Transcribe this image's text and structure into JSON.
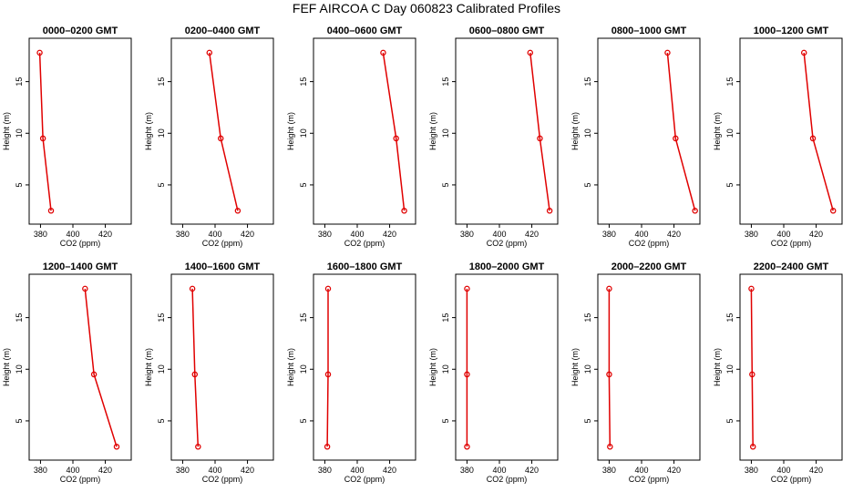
{
  "title": "FEF AIRCOA C  Day 060823  Calibrated Profiles",
  "axis": {
    "xlabel": "CO2 (ppm)",
    "ylabel": "Height (m)",
    "xlim": [
      373,
      436
    ],
    "ylim": [
      1.2,
      19.2
    ],
    "xticks": [
      380,
      400,
      420
    ],
    "yticks": [
      5,
      10,
      15
    ]
  },
  "style": {
    "line_color": "#e00000",
    "point_color": "#e00000"
  },
  "chart_data": [
    {
      "type": "line",
      "title": "0000–0200 GMT",
      "series": [
        {
          "x": [
            379.5,
            381.5,
            386.5
          ],
          "y": [
            17.8,
            9.5,
            2.5
          ]
        }
      ]
    },
    {
      "type": "line",
      "title": "0200–0400 GMT",
      "series": [
        {
          "x": [
            396.5,
            403.5,
            414
          ],
          "y": [
            17.8,
            9.5,
            2.5
          ]
        }
      ]
    },
    {
      "type": "line",
      "title": "0400–0600 GMT",
      "series": [
        {
          "x": [
            416,
            424,
            429
          ],
          "y": [
            17.8,
            9.5,
            2.5
          ]
        }
      ]
    },
    {
      "type": "line",
      "title": "0600–0800 GMT",
      "series": [
        {
          "x": [
            419,
            425,
            431
          ],
          "y": [
            17.8,
            9.5,
            2.5
          ]
        }
      ]
    },
    {
      "type": "line",
      "title": "0800–1000 GMT",
      "series": [
        {
          "x": [
            416,
            421,
            433
          ],
          "y": [
            17.8,
            9.5,
            2.5
          ]
        }
      ]
    },
    {
      "type": "line",
      "title": "1000–1200 GMT",
      "series": [
        {
          "x": [
            412.5,
            418,
            430.5
          ],
          "y": [
            17.8,
            9.5,
            2.5
          ]
        }
      ]
    },
    {
      "type": "line",
      "title": "1200–1400 GMT",
      "series": [
        {
          "x": [
            407.5,
            413,
            427
          ],
          "y": [
            17.8,
            9.5,
            2.5
          ]
        }
      ]
    },
    {
      "type": "line",
      "title": "1400–1600 GMT",
      "series": [
        {
          "x": [
            386,
            387.5,
            389.5
          ],
          "y": [
            17.8,
            9.5,
            2.5
          ]
        }
      ]
    },
    {
      "type": "line",
      "title": "1600–1800 GMT",
      "series": [
        {
          "x": [
            382,
            382,
            381.5
          ],
          "y": [
            17.8,
            9.5,
            2.5
          ]
        }
      ]
    },
    {
      "type": "line",
      "title": "1800–2000 GMT",
      "series": [
        {
          "x": [
            380,
            380,
            380
          ],
          "y": [
            17.8,
            9.5,
            2.5
          ]
        }
      ]
    },
    {
      "type": "line",
      "title": "2000–2200 GMT",
      "series": [
        {
          "x": [
            380,
            380,
            380.5
          ],
          "y": [
            17.8,
            9.5,
            2.5
          ]
        }
      ]
    },
    {
      "type": "line",
      "title": "2200–2400 GMT",
      "series": [
        {
          "x": [
            380,
            380.5,
            381
          ],
          "y": [
            17.8,
            9.5,
            2.5
          ]
        }
      ]
    }
  ]
}
